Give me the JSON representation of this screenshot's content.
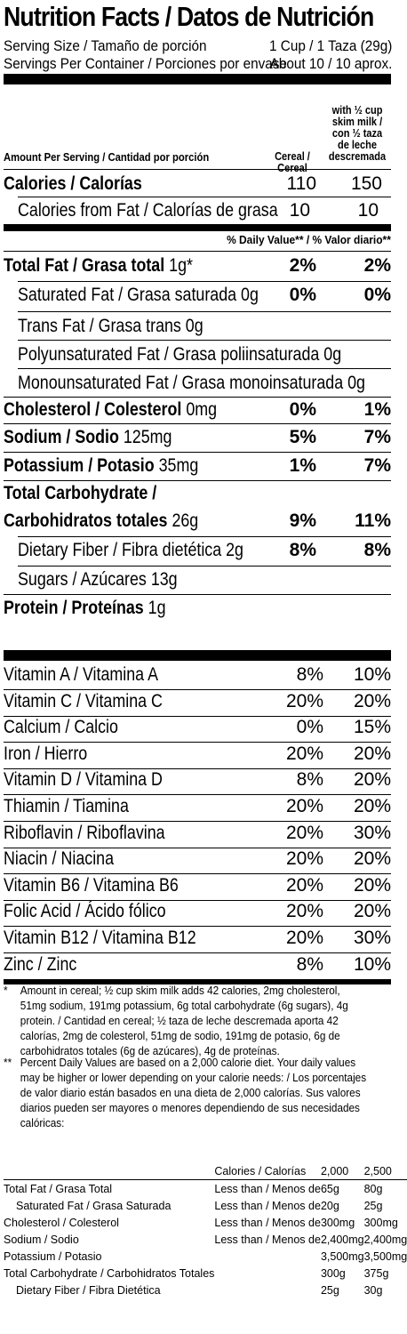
{
  "header": {
    "title": "Nutrition Facts / Datos de Nutrición",
    "serving_size_label": "Serving Size / Tamaño de porción",
    "serving_size_value": "1 Cup / 1 Taza (29g)",
    "servings_label": "Servings Per Container / Porciones por envase",
    "servings_value": "About 10 / 10 aprox."
  },
  "columns": {
    "amount_label": "Amount Per Serving / Cantidad por porción",
    "col1": "Cereal / Cereal",
    "col2": "with ½ cup skim milk / con ½ taza de leche descremada"
  },
  "calories": {
    "label": "Calories / Calorías",
    "v1": "110",
    "v2": "150"
  },
  "calories_fat": {
    "label": "Calories from Fat / Calorías de grasa",
    "v1": "10",
    "v2": "10"
  },
  "dv_header": "% Daily Value** / % Valor diario**",
  "nutrients": [
    {
      "label": "Total Fat / Grasa total",
      "amount": "1g*",
      "v1": "2%",
      "v2": "2%"
    },
    {
      "label": "Saturated Fat / Grasa saturada",
      "amount": "0g",
      "v1": "0%",
      "v2": "0%"
    },
    {
      "label": "Trans Fat / Grasa trans 0g"
    },
    {
      "label": "Polyunsaturated Fat / Grasa poliinsaturada 0g"
    },
    {
      "label": "Monounsaturated Fat / Grasa monoinsaturada 0g"
    },
    {
      "label": "Cholesterol / Colesterol",
      "amount": "0mg",
      "v1": "0%",
      "v2": "1%"
    },
    {
      "label": "Sodium / Sodio",
      "amount": "125mg",
      "v1": "5%",
      "v2": "7%"
    },
    {
      "label": "Potassium / Potasio",
      "amount": "35mg",
      "v1": "1%",
      "v2": "7%"
    },
    {
      "label": "Total Carbohydrate /"
    },
    {
      "label": "Carbohidratos totales",
      "amount": "26g",
      "v1": "9%",
      "v2": "11%"
    },
    {
      "label": "Dietary Fiber / Fibra dietética 2g",
      "v1": "8%",
      "v2": "8%"
    },
    {
      "label": "Sugars / Azúcares 13g"
    },
    {
      "label": "Protein / Proteínas",
      "amount": "1g"
    }
  ],
  "vitamins": [
    {
      "label": "Vitamin A / Vitamina A",
      "v1": "8%",
      "v2": "10%"
    },
    {
      "label": "Vitamin C / Vitamina C",
      "v1": "20%",
      "v2": "20%"
    },
    {
      "label": "Calcium / Calcio",
      "v1": "0%",
      "v2": "15%"
    },
    {
      "label": "Iron / Hierro",
      "v1": "20%",
      "v2": "20%"
    },
    {
      "label": "Vitamin D / Vitamina D",
      "v1": "8%",
      "v2": "20%"
    },
    {
      "label": "Thiamin / Tiamina",
      "v1": "20%",
      "v2": "20%"
    },
    {
      "label": "Riboflavin / Riboflavina",
      "v1": "20%",
      "v2": "30%"
    },
    {
      "label": "Niacin / Niacina",
      "v1": "20%",
      "v2": "20%"
    },
    {
      "label": "Vitamin B6 / Vitamina B6",
      "v1": "20%",
      "v2": "20%"
    },
    {
      "label": "Folic Acid / Ácido fólico",
      "v1": "20%",
      "v2": "20%"
    },
    {
      "label": "Vitamin B12 / Vitamina B12",
      "v1": "20%",
      "v2": "30%"
    },
    {
      "label": "Zinc / Zinc",
      "v1": "8%",
      "v2": "10%"
    }
  ],
  "footnotes": {
    "f1_mark": "*",
    "f1": "Amount in cereal; ½ cup skim milk adds 42 calories, 2mg cholesterol, 51mg sodium, 191mg potassium, 6g total carbohydrate (6g sugars), 4g protein. / Cantidad en cereal; ½ taza de leche descremada aporta 42 calorías, 2mg de colesterol, 51mg de sodio, 191mg de potasio, 6g de carbohidratos totales (6g de azúcares), 4g de proteínas.",
    "f2_mark": "**",
    "f2": "Percent Daily Values are based on a 2,000 calorie diet. Your daily values may be higher or lower depending on your calorie needs: / Los porcentajes de valor diario están basados en una dieta de 2,000 calorías. Sus valores diarios pueden ser mayores o menores dependiendo de sus necesidades calóricas:"
  },
  "dv_table": {
    "header": [
      "",
      "Calories / Calorías",
      "2,000",
      "2,500"
    ],
    "rows": [
      [
        "Total Fat / Grasa Total",
        "Less than / Menos de",
        "65g",
        "80g"
      ],
      [
        "Saturated Fat / Grasa Saturada",
        "Less than / Menos de",
        "20g",
        "25g"
      ],
      [
        "Cholesterol / Colesterol",
        "Less than / Menos de",
        "300mg",
        "300mg"
      ],
      [
        "Sodium / Sodio",
        "Less than / Menos de",
        "2,400mg",
        "2,400mg"
      ],
      [
        "Potassium / Potasio",
        "",
        "3,500mg",
        "3,500mg"
      ],
      [
        "Total Carbohydrate / Carbohidratos Totales",
        "",
        "300g",
        "375g"
      ],
      [
        "Dietary Fiber / Fibra Dietética",
        "",
        "25g",
        "30g"
      ]
    ]
  }
}
